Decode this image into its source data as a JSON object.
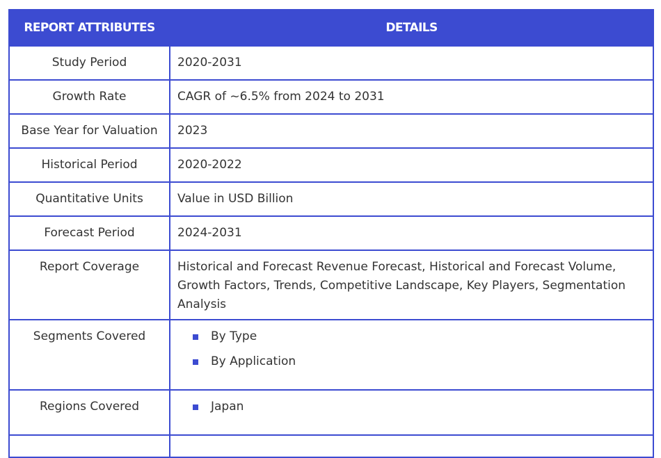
{
  "table": {
    "header": {
      "col1": "REPORT ATTRIBUTES",
      "col2": "DETAILS"
    },
    "rows": [
      {
        "attribute": "Study Period",
        "detail": "2020-2031"
      },
      {
        "attribute": "Growth Rate",
        "detail": "CAGR of ~6.5% from 2024 to 2031"
      },
      {
        "attribute": "Base Year for Valuation",
        "detail": "2023"
      },
      {
        "attribute": "Historical Period",
        "detail": "2020-2022"
      },
      {
        "attribute": "Quantitative Units",
        "detail": "Value in USD Billion"
      },
      {
        "attribute": "Forecast Period",
        "detail": "2024-2031"
      },
      {
        "attribute": "Report Coverage",
        "detail": "Historical and Forecast Revenue Forecast, Historical and Forecast Volume, Growth Factors, Trends, Competitive Landscape, Key Players, Segmentation Analysis"
      }
    ],
    "segments": {
      "attribute": "Segments Covered",
      "items": [
        "By Type",
        "By Application"
      ]
    },
    "regions": {
      "attribute": "Regions Covered",
      "items": [
        "Japan"
      ]
    }
  },
  "colors": {
    "accent": "#3c4bd1",
    "header_text": "#ffffff",
    "body_text": "#333333"
  }
}
